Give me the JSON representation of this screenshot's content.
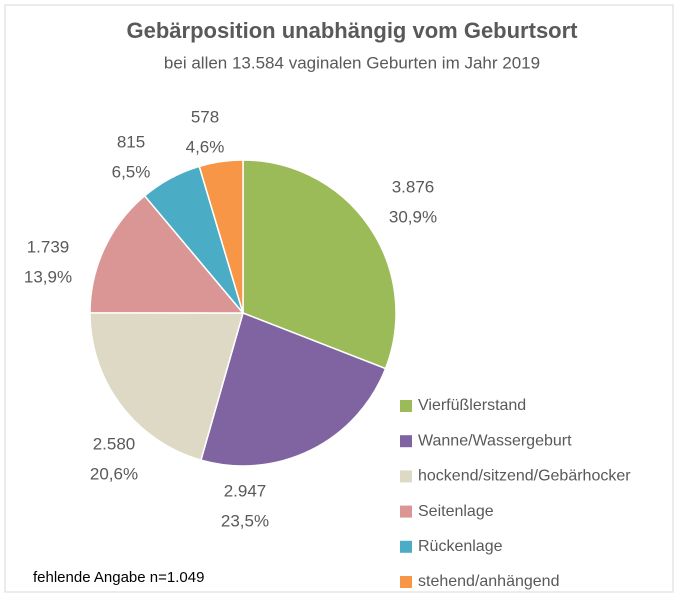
{
  "chart_data": {
    "type": "pie",
    "title": "Gebärposition unabhängig vom Geburtsort",
    "subtitle": "bei allen 13.584 vaginalen Geburten im Jahr 2019",
    "categories": [
      "Vierfüßlerstand",
      "Wanne/Wassergeburt",
      "hockend/sitzend/Gebärhocker",
      "Seitenlage",
      "Rückenlage",
      "stehend/anhängend"
    ],
    "values": [
      3876,
      2947,
      2580,
      1739,
      815,
      578
    ],
    "value_labels": [
      "3.876",
      "2.947",
      "2.580",
      "1.739",
      "815",
      "578"
    ],
    "percentages": [
      30.9,
      23.5,
      20.6,
      13.9,
      6.5,
      4.6
    ],
    "percentage_labels": [
      "30,9%",
      "23,5%",
      "20,6%",
      "13,9%",
      "6,5%",
      "4,6%"
    ],
    "colors": [
      "#9bbb59",
      "#8064a2",
      "#ddd9c4",
      "#d99694",
      "#4bacc6",
      "#f79646"
    ],
    "annotation": "fehlende Angabe n=1.049",
    "legend": "right"
  }
}
